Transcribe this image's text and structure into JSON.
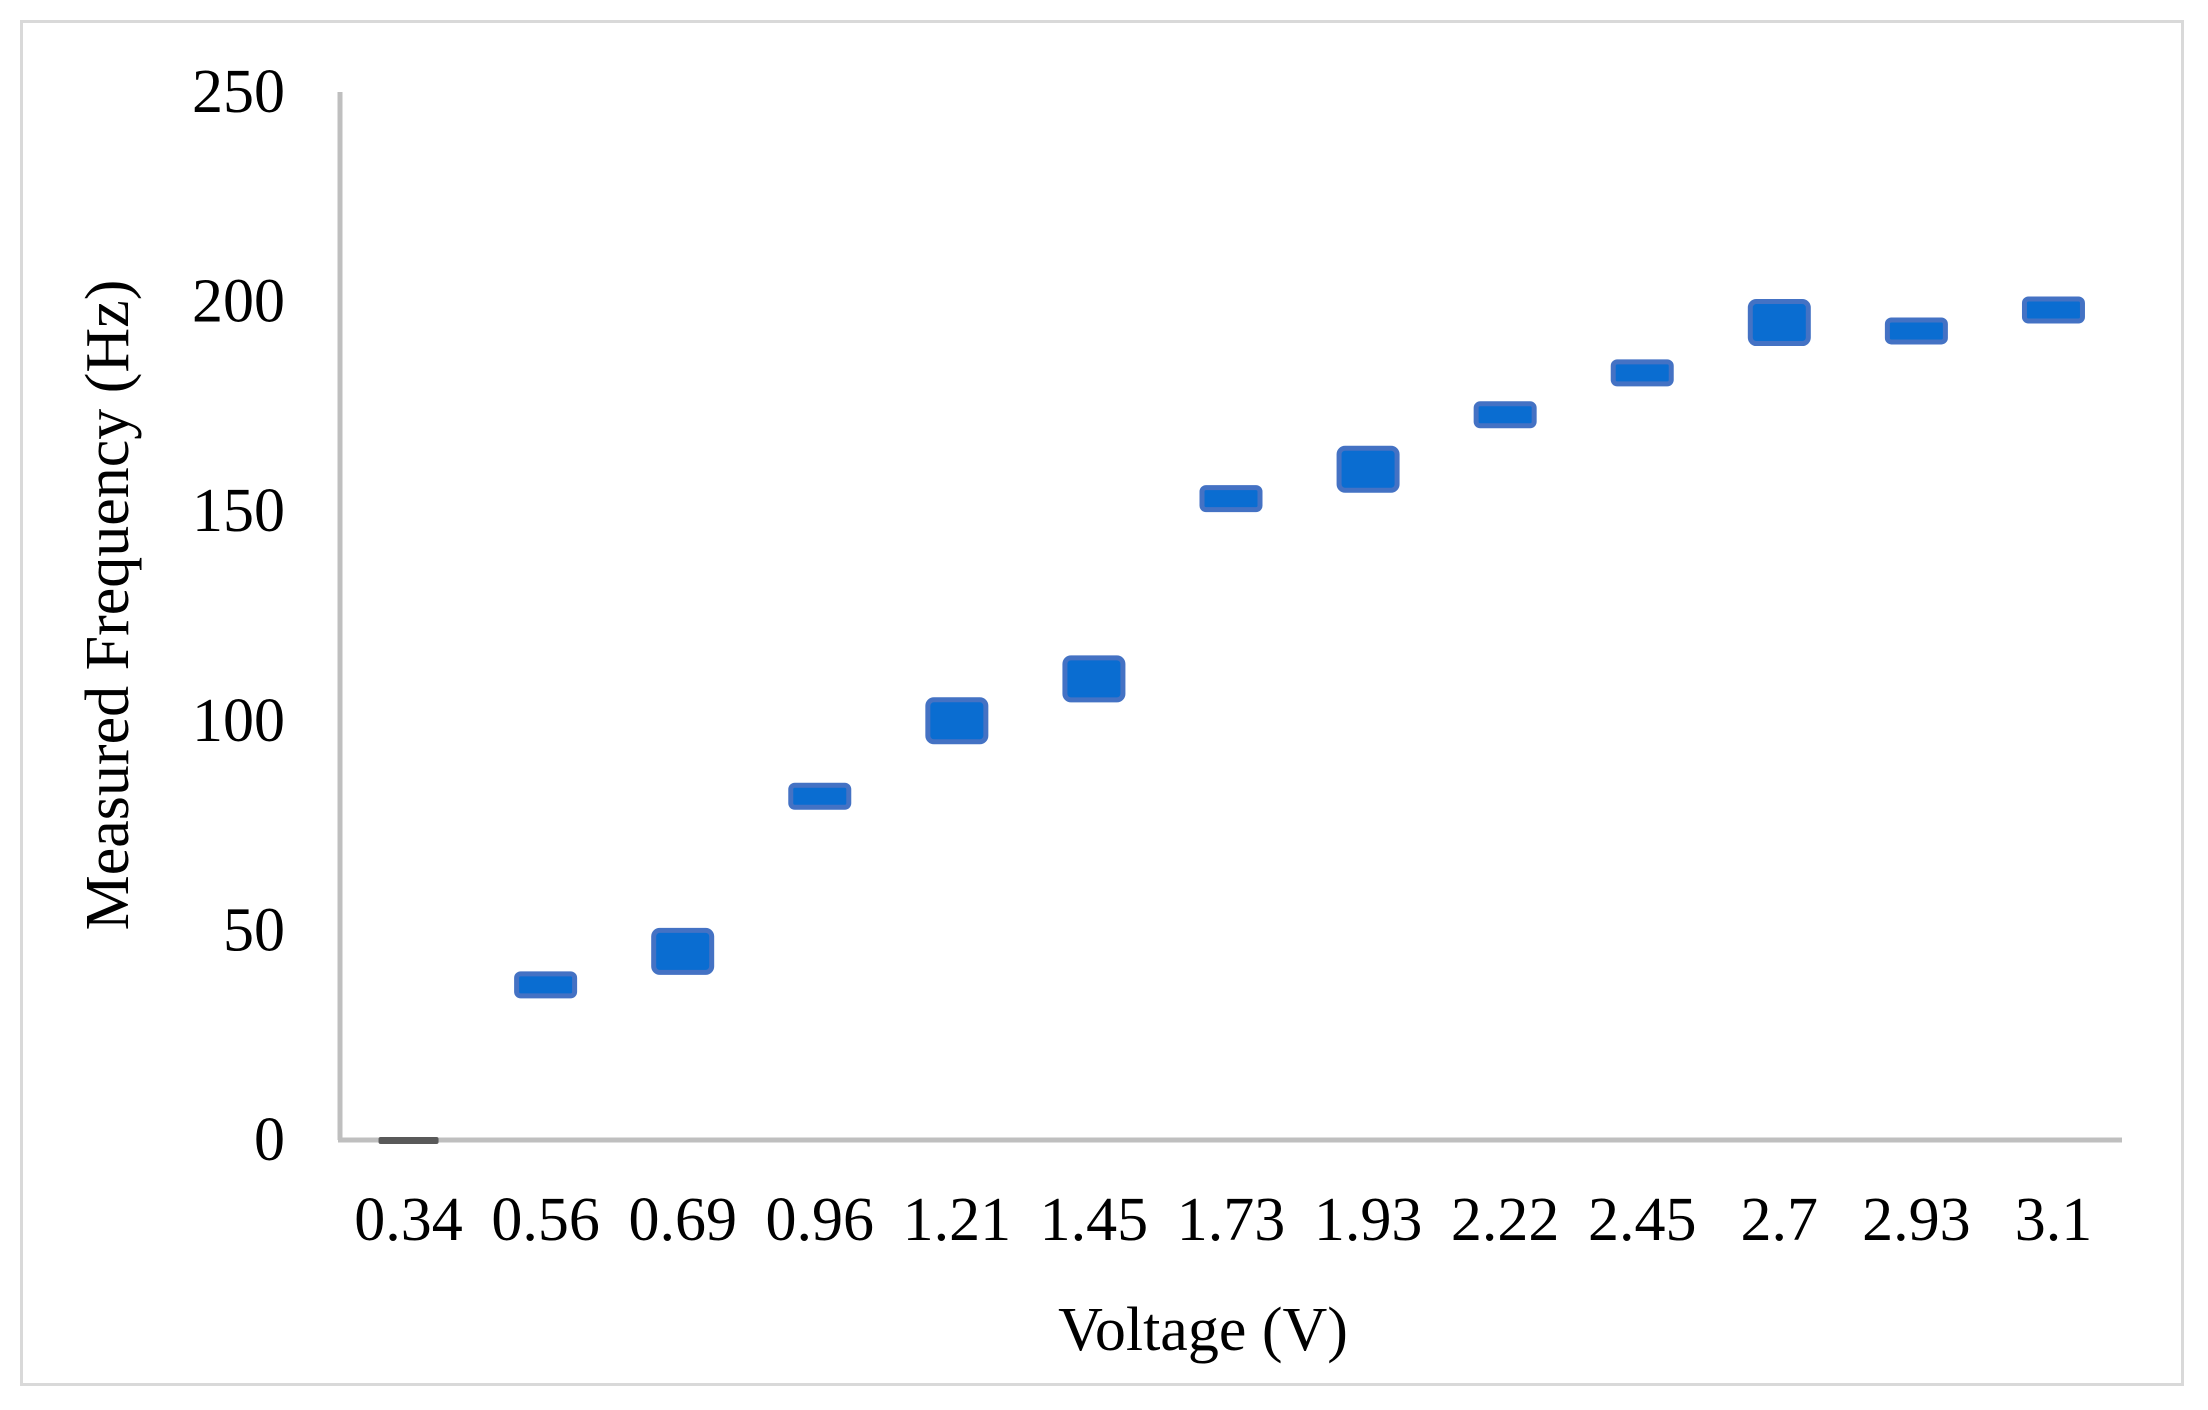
{
  "chart_data": {
    "type": "scatter",
    "title": "",
    "xlabel": "Voltage (V)",
    "ylabel": "Measured Frequency (Hz)",
    "categories": [
      "0.34",
      "0.56",
      "0.69",
      "0.96",
      "1.21",
      "1.45",
      "1.73",
      "1.93",
      "2.22",
      "2.45",
      "2.7",
      "2.93",
      "3.1"
    ],
    "yticks": [
      "0",
      "50",
      "100",
      "150",
      "200",
      "250"
    ],
    "ylim": [
      0,
      250
    ],
    "grid": false,
    "legend": "none",
    "series": [
      {
        "values": [
          0,
          37,
          45,
          82,
          100,
          110,
          153,
          160,
          173,
          183,
          195,
          193,
          198
        ],
        "marker_size": [
          "line",
          "small",
          "large",
          "small",
          "large",
          "large",
          "small",
          "large",
          "small",
          "small",
          "large",
          "small",
          "small"
        ]
      }
    ],
    "colors": {
      "marker_fill": "#0a6dd1",
      "marker_edge": "#4472c4",
      "zero_marker": "#595959",
      "axis": "#bfbfbf",
      "frame": "#d9d9d9"
    }
  }
}
